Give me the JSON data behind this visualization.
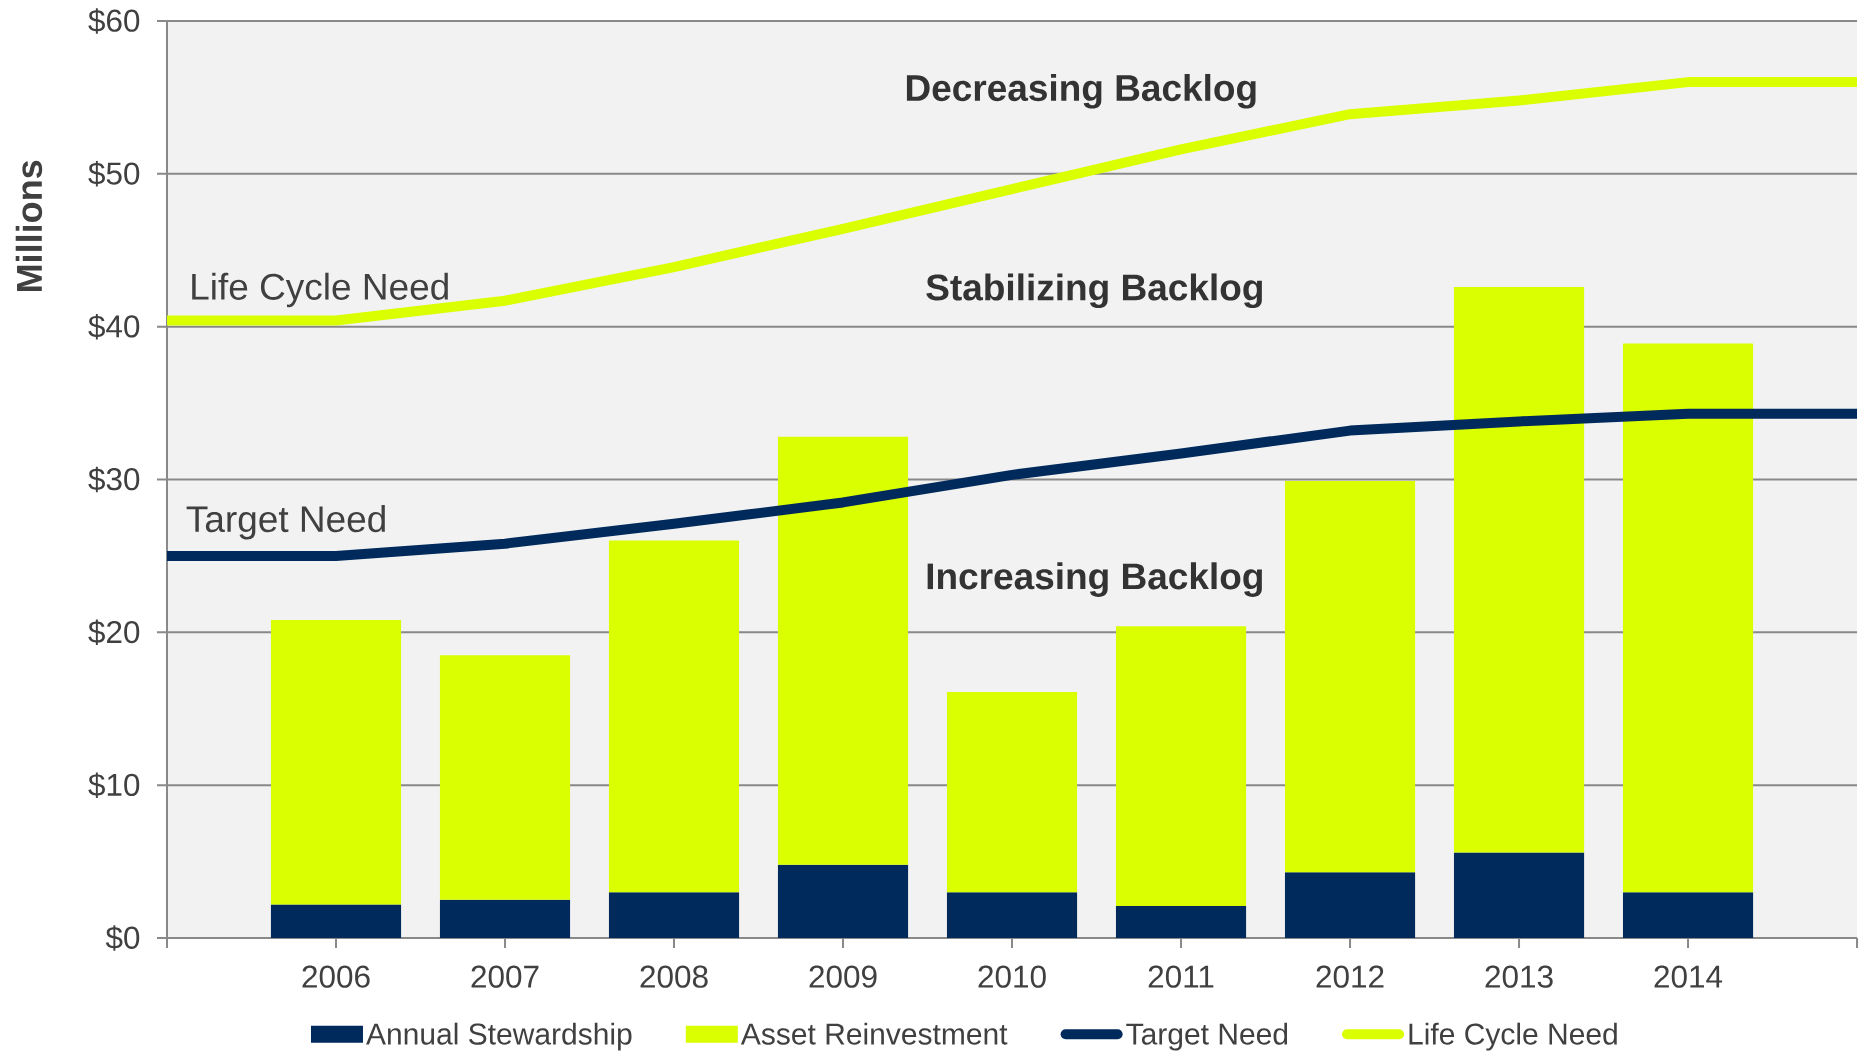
{
  "chart_data": {
    "type": "bar",
    "stacked": true,
    "categories": [
      null,
      "2006",
      "2007",
      "2008",
      "2009",
      "2010",
      "2011",
      "2012",
      "2013",
      "2014",
      null
    ],
    "ylabel": "Millions",
    "series": [
      {
        "name": "Annual Stewardship",
        "color": "#002a5c",
        "values": [
          null,
          2.2,
          2.5,
          3.0,
          4.8,
          3.0,
          2.1,
          4.3,
          5.6,
          3.0,
          null
        ]
      },
      {
        "name": "Asset Reinvestment",
        "color": "#d9ff00",
        "values": [
          null,
          18.6,
          16.0,
          23.0,
          28.0,
          13.1,
          18.3,
          25.6,
          37.0,
          35.9,
          null
        ]
      },
      {
        "name": "Target Need",
        "type": "line",
        "color": "#002a5c",
        "values": [
          25.0,
          25.0,
          25.8,
          27.1,
          28.5,
          30.3,
          31.7,
          33.2,
          33.8,
          34.3,
          34.3
        ]
      },
      {
        "name": "Life Cycle Need",
        "type": "line",
        "color": "#d9ff00",
        "values": [
          40.4,
          40.4,
          41.7,
          43.9,
          46.4,
          49.0,
          51.6,
          53.9,
          54.8,
          56.0,
          56.0
        ]
      }
    ],
    "ylim": [
      0,
      60
    ],
    "yticks": [
      {
        "value": 0,
        "label": "$0"
      },
      {
        "value": 10,
        "label": "$10"
      },
      {
        "value": 20,
        "label": "$20"
      },
      {
        "value": 30,
        "label": "$30"
      },
      {
        "value": 40,
        "label": "$40"
      },
      {
        "value": 50,
        "label": "$50"
      },
      {
        "value": 60,
        "label": "$60"
      }
    ],
    "grid": "y",
    "legend": "bottom",
    "annotations": [
      "Decreasing Backlog",
      "Stabilizing Backlog",
      "Increasing Backlog",
      "Life Cycle Need",
      "Target Need"
    ]
  }
}
